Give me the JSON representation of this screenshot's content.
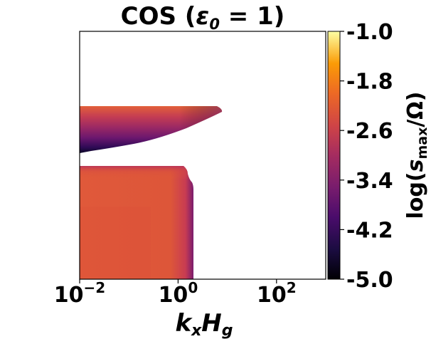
{
  "chart_data": {
    "type": "heatmap",
    "title_prefix": "COS (",
    "title_symbol": "ε",
    "title_subscript": "0",
    "title_suffix": " = 1)",
    "xlabel": {
      "k": "k",
      "k_sub": "x",
      "H": "H",
      "H_sub": "g"
    },
    "x_scale": "log",
    "xlim": [
      0.01,
      1000
    ],
    "x_ticks": [
      {
        "value": 0.01,
        "base": "10",
        "exp": "−2"
      },
      {
        "value": 1,
        "base": "10",
        "exp": "0"
      },
      {
        "value": 100,
        "base": "10",
        "exp": "2"
      }
    ],
    "yaxis_ticks_shown": false,
    "colorbar": {
      "label": {
        "prefix": "log(",
        "s": "s",
        "sub": "max",
        "suffix": "/Ω)"
      },
      "range": [
        -5.0,
        -1.0
      ],
      "ticks": [
        "-1.0",
        "-1.8",
        "-2.6",
        "-3.4",
        "-4.2",
        "-5.0"
      ],
      "tick_values": [
        -1.0,
        -1.8,
        -2.6,
        -3.4,
        -4.2,
        -5.0
      ],
      "colormap": "inferno"
    },
    "regions": [
      {
        "name": "upper-unstable-band",
        "x_range": [
          0.01,
          6.0
        ],
        "log_s_max_range": [
          -4.8,
          -2.3
        ]
      },
      {
        "name": "lower-unstable-region",
        "x_range": [
          0.01,
          1.4
        ],
        "log_s_max_range": [
          -2.9,
          -2.5
        ]
      }
    ]
  },
  "colors": {
    "text": "#000000",
    "background": "#ffffff",
    "region_main": "#e05a36",
    "region_light": "#dc5139",
    "band_dark": "#170c3a",
    "band_mid": "#6a176e"
  }
}
